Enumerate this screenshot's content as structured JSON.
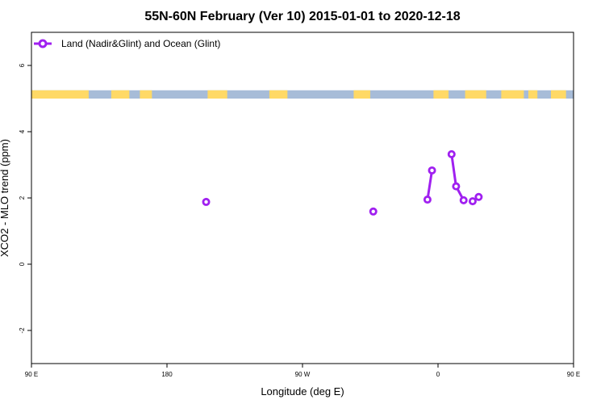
{
  "chart_data": {
    "type": "line",
    "title": "55N-60N February (Ver 10)   2015-01-01 to 2020-12-18",
    "xlabel": "Longitude (deg E)",
    "ylabel": "XCO2 - MLO trend (ppm)",
    "xlim": [
      90,
      450
    ],
    "ylim": [
      -3,
      7
    ],
    "x_ticks": [
      {
        "value": 90,
        "label": "90 E"
      },
      {
        "value": 180,
        "label": "180"
      },
      {
        "value": 270,
        "label": "90 W"
      },
      {
        "value": 360,
        "label": "0"
      },
      {
        "value": 450,
        "label": "90 E"
      },
      {
        "value": 540,
        "label": "180"
      }
    ],
    "y_ticks": [
      {
        "value": -2,
        "label": "-2"
      },
      {
        "value": 0,
        "label": "0"
      },
      {
        "value": 2,
        "label": "2"
      },
      {
        "value": 4,
        "label": "4"
      },
      {
        "value": 6,
        "label": "6"
      }
    ],
    "legend": {
      "position": "top-left"
    },
    "series": [
      {
        "name": "Land (Nadir&Glint) and Ocean (Glint)",
        "color": "#a020f0",
        "points": [
          {
            "lon": 206,
            "y": 1.88
          },
          {
            "lon": 317,
            "y": 1.59
          },
          {
            "lon": 353,
            "y": 1.95
          },
          {
            "lon": 356,
            "y": 2.83
          },
          {
            "lon": 369,
            "y": 3.32
          },
          {
            "lon": 372,
            "y": 2.35
          },
          {
            "lon": 377,
            "y": 1.93
          },
          {
            "lon": 383,
            "y": 1.9
          },
          {
            "lon": 387,
            "y": 2.03
          }
        ],
        "connected_segments": [
          [
            2,
            3
          ],
          [
            4,
            5,
            6
          ],
          [
            7,
            8
          ]
        ]
      }
    ],
    "land_ocean_strip": {
      "y_range": [
        5.0,
        5.25
      ],
      "ocean_color": "#a7bcd8",
      "land_color": "#ffd966",
      "land_intervals_lon": [
        [
          90,
          128
        ],
        [
          143,
          155
        ],
        [
          162,
          170
        ],
        [
          207,
          220
        ],
        [
          248,
          260
        ],
        [
          304,
          315
        ],
        [
          357,
          367
        ],
        [
          378,
          392
        ],
        [
          402,
          417
        ],
        [
          420,
          426
        ],
        [
          435,
          445
        ]
      ]
    }
  }
}
